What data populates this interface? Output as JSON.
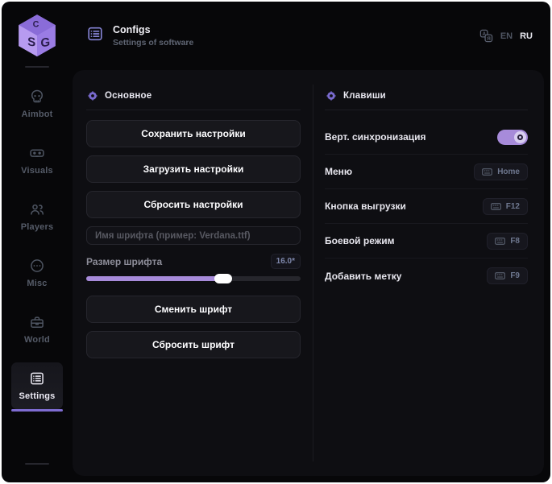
{
  "header": {
    "title": "Configs",
    "subtitle": "Settings of software",
    "lang_en": "EN",
    "lang_ru": "RU"
  },
  "brand": {
    "logo": "SG-cube-logo",
    "logo_letters_left": "S",
    "logo_letters_right": "G"
  },
  "sidebar": {
    "items": [
      {
        "label": "Aimbot",
        "icon": "skull-icon",
        "active": false
      },
      {
        "label": "Visuals",
        "icon": "vr-goggles-icon",
        "active": false
      },
      {
        "label": "Players",
        "icon": "players-icon",
        "active": false
      },
      {
        "label": "Misc",
        "icon": "misc-icon",
        "active": false
      },
      {
        "label": "World",
        "icon": "world-icon",
        "active": false
      },
      {
        "label": "Settings",
        "icon": "settings-list-icon",
        "active": true
      }
    ]
  },
  "general_panel": {
    "title": "Основное",
    "save_button": "Сохранить настройки",
    "load_button": "Загрузить настройки",
    "reset_button": "Сбросить настройки",
    "font_name_placeholder": "Имя шрифта (пример: Verdana.ttf)",
    "font_size_label": "Размер шрифта",
    "font_size_value": "16.0*",
    "font_size_percent": 64,
    "change_font_button": "Сменить шрифт",
    "reset_font_button": "Сбросить шрифт"
  },
  "keys_panel": {
    "title": "Клавиши",
    "rows": [
      {
        "label": "Верт. синхронизация",
        "type": "toggle",
        "state": "on"
      },
      {
        "label": "Меню",
        "type": "keybind",
        "key": "Home"
      },
      {
        "label": "Кнопка выгрузки",
        "type": "keybind",
        "key": "F12"
      },
      {
        "label": "Боевой режим",
        "type": "keybind",
        "key": "F8"
      },
      {
        "label": "Добавить метку",
        "type": "keybind",
        "key": "F9"
      }
    ]
  },
  "colors": {
    "accent_purple": "#8b7ad8",
    "slider_fill": "#a78bda",
    "toggle_on": "#a78bda",
    "panel_bg": "#0e0e12",
    "window_bg": "#070709",
    "button_bg": "#17171c"
  }
}
